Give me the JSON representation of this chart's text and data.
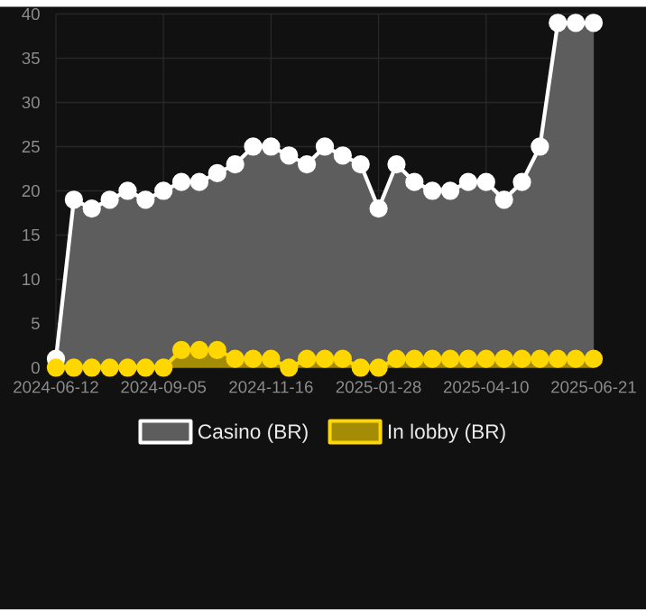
{
  "chart_data": {
    "type": "area",
    "categories": [
      "2024-06-12",
      null,
      null,
      null,
      null,
      null,
      "2024-09-05",
      null,
      null,
      null,
      null,
      null,
      "2024-11-16",
      null,
      null,
      null,
      null,
      null,
      "2025-01-28",
      null,
      null,
      null,
      null,
      null,
      "2025-04-10",
      null,
      null,
      null,
      null,
      null,
      "2025-06-21"
    ],
    "series": [
      {
        "name": "In lobby (BR)",
        "color": "#ffd700",
        "values": [
          0,
          0,
          0,
          0,
          0,
          0,
          0,
          2,
          2,
          2,
          1,
          1,
          1,
          0,
          1,
          1,
          1,
          0,
          0,
          1,
          1,
          1,
          1,
          1,
          1,
          1,
          1,
          1,
          1,
          1,
          1
        ]
      },
      {
        "name": "Casino (BR)",
        "color": "#ffffff",
        "values": [
          1,
          19,
          18,
          19,
          20,
          19,
          20,
          21,
          21,
          22,
          23,
          25,
          25,
          24,
          23,
          25,
          24,
          23,
          18,
          23,
          21,
          20,
          20,
          21,
          21,
          19,
          21,
          25,
          39,
          39,
          39
        ]
      }
    ],
    "ylim": [
      0,
      40
    ],
    "yticks": [
      0,
      5,
      10,
      15,
      20,
      25,
      30,
      35,
      40
    ],
    "grid": true,
    "legend": "bottom",
    "marker": "circle",
    "line_style": "solid"
  }
}
